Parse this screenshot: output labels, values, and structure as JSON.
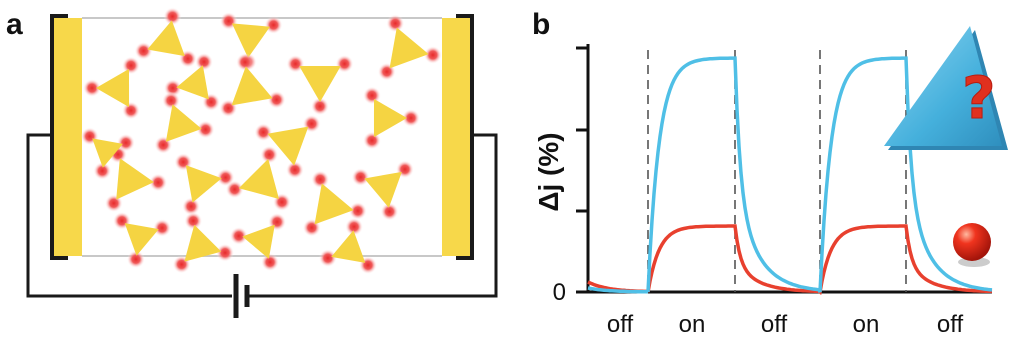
{
  "panel_a": {
    "label": "a",
    "colors": {
      "electrode": "#f7d84a",
      "particle": "#f5d442",
      "ion": "#ee3b3b",
      "wire": "#1a1a1a"
    }
  },
  "panel_b": {
    "label": "b",
    "ylabel": "Δj (%)",
    "y_tick_zero": "0",
    "phase_labels": [
      "off",
      "on",
      "off",
      "on",
      "off"
    ],
    "question_mark": "?",
    "colors": {
      "triangle_curve": "#4fbfe6",
      "sphere_curve": "#e8402e",
      "triangle_icon": "#4fb6e0",
      "sphere_icon": "#e8281c"
    }
  }
}
